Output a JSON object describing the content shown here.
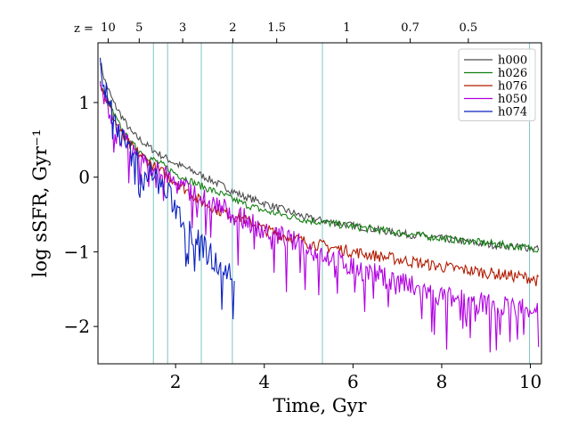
{
  "chart_data": {
    "type": "line",
    "title": "",
    "xlabel": "Time, Gyr",
    "ylabel": "log sSFR, Gyr⁻¹",
    "xlim": [
      0.25,
      10.25
    ],
    "ylim": [
      -2.5,
      1.8
    ],
    "xticks": [
      2,
      4,
      6,
      8,
      10
    ],
    "yticks": [
      1,
      0,
      -1,
      -2
    ],
    "xtick_labels": [
      "2",
      "4",
      "6",
      "8",
      "10"
    ],
    "ytick_labels": [
      "1",
      "0",
      "−1",
      "−2"
    ],
    "redshift_axis": {
      "prefix": "z =",
      "ticks": [
        {
          "label": "10",
          "t": 0.48
        },
        {
          "label": "5",
          "t": 1.18
        },
        {
          "label": "3",
          "t": 2.16
        },
        {
          "label": "2",
          "t": 3.29
        },
        {
          "label": "1.5",
          "t": 4.28
        },
        {
          "label": "1",
          "t": 5.86
        },
        {
          "label": "0.7",
          "t": 7.29
        },
        {
          "label": "0.5",
          "t": 8.6
        }
      ]
    },
    "vlines": {
      "color": "#7fc6c6",
      "x": [
        1.5,
        1.82,
        2.58,
        3.28,
        5.31,
        9.98
      ]
    },
    "legend": {
      "position": "top-right"
    },
    "series": [
      {
        "name": "h000",
        "color": "#4d4d4d",
        "x": [
          0.3,
          0.4,
          0.5,
          0.6,
          0.8,
          1.0,
          1.3,
          1.6,
          2.0,
          2.5,
          3.0,
          3.5,
          4.0,
          5.0,
          6.0,
          7.0,
          8.0,
          9.0,
          10.0,
          10.2
        ],
        "y": [
          1.55,
          1.3,
          1.15,
          1.0,
          0.8,
          0.6,
          0.45,
          0.32,
          0.18,
          0.05,
          -0.1,
          -0.25,
          -0.35,
          -0.55,
          -0.65,
          -0.75,
          -0.82,
          -0.9,
          -0.95,
          -0.95
        ],
        "noise": 0.05
      },
      {
        "name": "h026",
        "color": "#137f13",
        "x": [
          0.3,
          0.4,
          0.5,
          0.6,
          0.8,
          1.0,
          1.3,
          1.6,
          2.0,
          2.5,
          3.0,
          3.5,
          4.0,
          5.0,
          6.0,
          7.0,
          8.0,
          9.0,
          10.0,
          10.2
        ],
        "y": [
          1.25,
          1.1,
          1.0,
          0.85,
          0.62,
          0.45,
          0.3,
          0.2,
          0.05,
          -0.1,
          -0.22,
          -0.35,
          -0.45,
          -0.58,
          -0.66,
          -0.74,
          -0.82,
          -0.88,
          -0.95,
          -0.96
        ],
        "noise": 0.05
      },
      {
        "name": "h076",
        "color": "#b21a00",
        "x": [
          0.3,
          0.4,
          0.5,
          0.6,
          0.8,
          1.0,
          1.3,
          1.6,
          2.0,
          2.5,
          3.0,
          3.5,
          4.0,
          5.0,
          6.0,
          7.0,
          8.0,
          9.0,
          10.0,
          10.2
        ],
        "y": [
          1.3,
          1.1,
          0.95,
          0.8,
          0.55,
          0.4,
          0.25,
          0.1,
          -0.05,
          -0.3,
          -0.45,
          -0.55,
          -0.7,
          -0.88,
          -1.0,
          -1.1,
          -1.2,
          -1.28,
          -1.35,
          -1.4
        ],
        "noise": 0.08
      },
      {
        "name": "h050",
        "color": "#b000e0",
        "x": [
          0.3,
          0.4,
          0.5,
          0.6,
          0.8,
          1.0,
          1.3,
          1.6,
          2.0,
          2.5,
          3.0,
          3.5,
          4.0,
          5.0,
          6.0,
          7.0,
          8.0,
          9.0,
          10.0,
          10.2
        ],
        "y": [
          1.2,
          1.0,
          0.9,
          0.75,
          0.52,
          0.35,
          0.2,
          0.08,
          -0.08,
          -0.25,
          -0.4,
          -0.55,
          -0.7,
          -0.95,
          -1.2,
          -1.4,
          -1.6,
          -1.7,
          -1.75,
          -1.75
        ],
        "noise": 0.15
      },
      {
        "name": "h074",
        "color": "#0a1fbf",
        "x": [
          0.3,
          0.4,
          0.5,
          0.6,
          0.8,
          1.0,
          1.3,
          1.6,
          1.9,
          2.2,
          2.5,
          2.8,
          3.1,
          3.35
        ],
        "y": [
          1.5,
          1.2,
          1.0,
          0.8,
          0.5,
          0.3,
          0.1,
          -0.05,
          -0.3,
          -0.6,
          -0.85,
          -1.05,
          -1.2,
          -1.45
        ],
        "noise": 0.18
      }
    ]
  }
}
